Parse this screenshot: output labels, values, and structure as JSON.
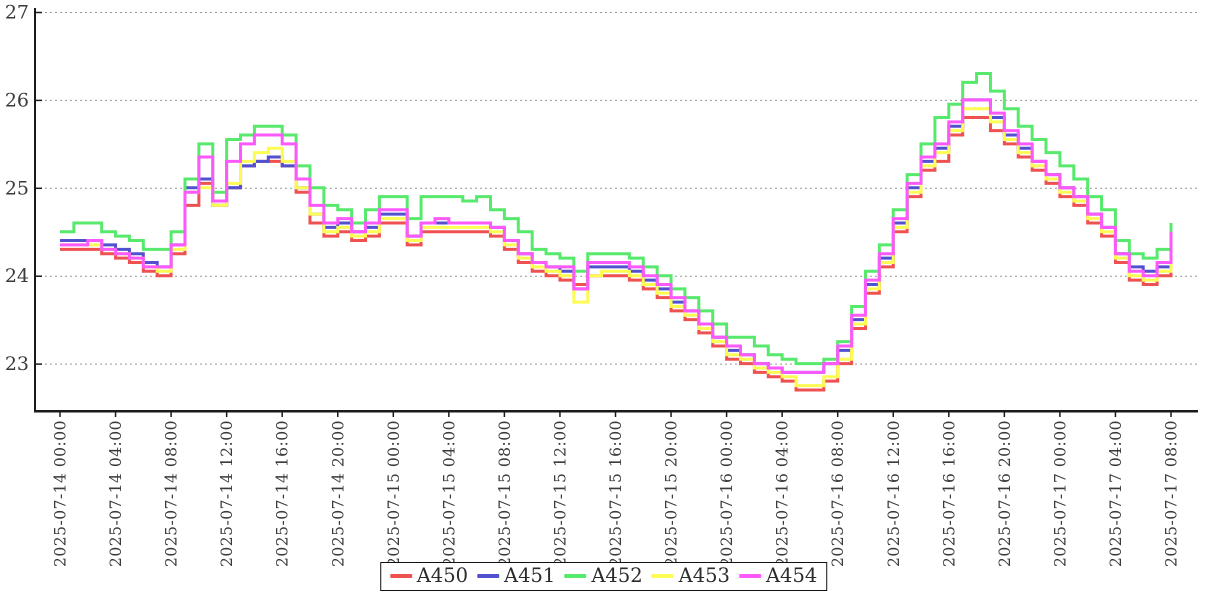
{
  "chart_data": {
    "type": "line",
    "line_style": "steps-post",
    "title": "",
    "xlabel": "",
    "ylabel": "",
    "x_start": "2025-07-14 00:00",
    "x_end": "2025-07-17 08:00",
    "sample_interval_minutes": 60,
    "x_tick_interval_hours": 4,
    "x_tick_labels": [
      "2025-07-14 00:00",
      "2025-07-14 04:00",
      "2025-07-14 08:00",
      "2025-07-14 12:00",
      "2025-07-14 16:00",
      "2025-07-14 20:00",
      "2025-07-15 00:00",
      "2025-07-15 04:00",
      "2025-07-15 08:00",
      "2025-07-15 12:00",
      "2025-07-15 16:00",
      "2025-07-15 20:00",
      "2025-07-16 00:00",
      "2025-07-16 04:00",
      "2025-07-16 08:00",
      "2025-07-16 12:00",
      "2025-07-16 16:00",
      "2025-07-16 20:00",
      "2025-07-17 00:00",
      "2025-07-17 04:00",
      "2025-07-17 08:00"
    ],
    "y_tick_labels": [
      "23",
      "24",
      "25",
      "26",
      "27"
    ],
    "y_ticks": [
      23,
      24,
      25,
      26,
      27
    ],
    "ylim": [
      22.47,
      27
    ],
    "grid": "horizontal-dotted",
    "legend_position": "bottom-center",
    "axis_color": "#1a1a1a",
    "grid_color": "#999999",
    "tick_label_color": "#3a3a3a",
    "series": [
      {
        "name": "A450",
        "color": "#ef5150",
        "values": [
          24.3,
          24.3,
          24.3,
          24.25,
          24.2,
          24.15,
          24.05,
          24.0,
          24.25,
          24.8,
          25.05,
          24.8,
          25.0,
          25.25,
          25.3,
          25.3,
          25.25,
          24.95,
          24.6,
          24.45,
          24.5,
          24.4,
          24.45,
          24.6,
          24.6,
          24.35,
          24.5,
          24.5,
          24.5,
          24.5,
          24.5,
          24.45,
          24.3,
          24.15,
          24.05,
          24.0,
          23.95,
          23.9,
          24.0,
          24.0,
          24.0,
          23.95,
          23.85,
          23.75,
          23.6,
          23.5,
          23.35,
          23.2,
          23.05,
          23.0,
          22.9,
          22.85,
          22.8,
          22.7,
          22.7,
          22.8,
          23.0,
          23.4,
          23.8,
          24.1,
          24.5,
          24.9,
          25.2,
          25.3,
          25.6,
          25.8,
          25.8,
          25.65,
          25.5,
          25.35,
          25.2,
          25.05,
          24.9,
          24.8,
          24.6,
          24.45,
          24.15,
          23.95,
          23.9,
          24.0,
          24.3
        ]
      },
      {
        "name": "A451",
        "color": "#5151d0",
        "values": [
          24.4,
          24.4,
          24.4,
          24.35,
          24.3,
          24.25,
          24.15,
          24.1,
          24.35,
          25.0,
          25.1,
          24.8,
          25.0,
          25.25,
          25.3,
          25.35,
          25.25,
          25.0,
          24.7,
          24.55,
          24.6,
          24.5,
          24.55,
          24.7,
          24.7,
          24.45,
          24.6,
          24.6,
          24.6,
          24.6,
          24.6,
          24.55,
          24.4,
          24.25,
          24.15,
          24.1,
          24.05,
          23.85,
          24.1,
          24.1,
          24.1,
          24.05,
          23.95,
          23.85,
          23.7,
          23.6,
          23.45,
          23.3,
          23.15,
          23.1,
          23.0,
          22.95,
          22.9,
          22.9,
          22.9,
          23.0,
          23.15,
          23.5,
          23.9,
          24.2,
          24.6,
          25.0,
          25.3,
          25.45,
          25.7,
          26.0,
          26.0,
          25.8,
          25.6,
          25.45,
          25.3,
          25.15,
          25.0,
          24.9,
          24.7,
          24.55,
          24.25,
          24.1,
          24.05,
          24.1,
          24.4
        ]
      },
      {
        "name": "A452",
        "color": "#57e96c",
        "values": [
          24.5,
          24.6,
          24.6,
          24.5,
          24.45,
          24.4,
          24.3,
          24.3,
          24.5,
          25.1,
          25.5,
          24.95,
          25.55,
          25.6,
          25.7,
          25.7,
          25.6,
          25.25,
          25.0,
          24.8,
          24.75,
          24.6,
          24.75,
          24.9,
          24.9,
          24.65,
          24.9,
          24.9,
          24.9,
          24.85,
          24.9,
          24.75,
          24.65,
          24.5,
          24.3,
          24.25,
          24.2,
          24.05,
          24.25,
          24.25,
          24.25,
          24.2,
          24.1,
          24.0,
          23.85,
          23.75,
          23.6,
          23.45,
          23.3,
          23.3,
          23.2,
          23.1,
          23.05,
          23.0,
          23.0,
          23.05,
          23.25,
          23.65,
          24.05,
          24.35,
          24.75,
          25.15,
          25.5,
          25.8,
          25.95,
          26.2,
          26.3,
          26.1,
          25.9,
          25.7,
          25.55,
          25.4,
          25.25,
          25.1,
          24.9,
          24.75,
          24.4,
          24.25,
          24.2,
          24.3,
          24.6
        ]
      },
      {
        "name": "A453",
        "color": "#fcfc53",
        "values": [
          24.35,
          24.35,
          24.35,
          24.3,
          24.25,
          24.2,
          24.1,
          24.05,
          24.3,
          24.95,
          25.0,
          24.8,
          25.05,
          25.3,
          25.4,
          25.45,
          25.3,
          25.0,
          24.7,
          24.5,
          24.55,
          24.45,
          24.5,
          24.65,
          24.65,
          24.4,
          24.55,
          24.55,
          24.55,
          24.55,
          24.55,
          24.5,
          24.35,
          24.2,
          24.1,
          24.05,
          24.0,
          23.7,
          24.0,
          24.05,
          24.05,
          24.0,
          23.9,
          23.8,
          23.65,
          23.55,
          23.4,
          23.25,
          23.1,
          23.05,
          22.95,
          22.9,
          22.85,
          22.75,
          22.75,
          22.85,
          23.05,
          23.45,
          23.85,
          24.15,
          24.55,
          24.95,
          25.25,
          25.4,
          25.65,
          25.9,
          25.9,
          25.75,
          25.55,
          25.4,
          25.25,
          25.1,
          24.95,
          24.85,
          24.65,
          24.5,
          24.2,
          24.0,
          23.95,
          24.05,
          24.4
        ]
      },
      {
        "name": "A454",
        "color": "#fb59fb",
        "values": [
          24.35,
          24.35,
          24.4,
          24.3,
          24.25,
          24.2,
          24.1,
          24.1,
          24.35,
          24.95,
          25.35,
          24.85,
          25.3,
          25.5,
          25.6,
          25.6,
          25.5,
          25.1,
          24.8,
          24.6,
          24.65,
          24.5,
          24.6,
          24.75,
          24.75,
          24.45,
          24.6,
          24.65,
          24.6,
          24.6,
          24.6,
          24.55,
          24.4,
          24.25,
          24.15,
          24.1,
          24.1,
          23.85,
          24.15,
          24.15,
          24.15,
          24.1,
          24.0,
          23.9,
          23.75,
          23.6,
          23.45,
          23.3,
          23.2,
          23.1,
          23.0,
          22.95,
          22.9,
          22.9,
          22.9,
          23.0,
          23.2,
          23.55,
          23.95,
          24.25,
          24.65,
          25.05,
          25.35,
          25.5,
          25.75,
          26.0,
          26.0,
          25.85,
          25.65,
          25.5,
          25.3,
          25.15,
          25.0,
          24.9,
          24.7,
          24.55,
          24.25,
          24.05,
          24.0,
          24.15,
          24.5
        ]
      }
    ]
  }
}
